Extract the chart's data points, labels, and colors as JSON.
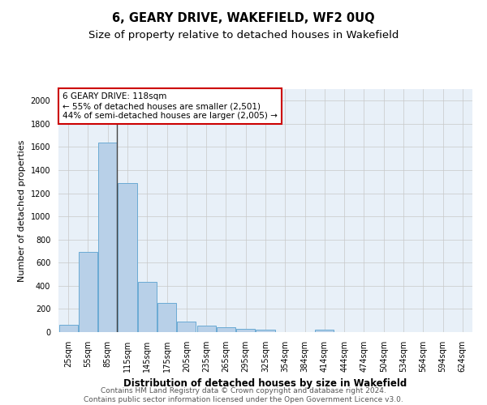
{
  "title": "6, GEARY DRIVE, WAKEFIELD, WF2 0UQ",
  "subtitle": "Size of property relative to detached houses in Wakefield",
  "xlabel": "Distribution of detached houses by size in Wakefield",
  "ylabel": "Number of detached properties",
  "categories": [
    "25sqm",
    "55sqm",
    "85sqm",
    "115sqm",
    "145sqm",
    "175sqm",
    "205sqm",
    "235sqm",
    "265sqm",
    "295sqm",
    "325sqm",
    "354sqm",
    "384sqm",
    "414sqm",
    "444sqm",
    "474sqm",
    "504sqm",
    "534sqm",
    "564sqm",
    "594sqm",
    "624sqm"
  ],
  "values": [
    65,
    690,
    1640,
    1290,
    435,
    255,
    90,
    55,
    40,
    30,
    20,
    0,
    0,
    20,
    0,
    0,
    0,
    0,
    0,
    0,
    0
  ],
  "bar_color": "#b8d0e8",
  "bar_edge_color": "#6aaad4",
  "plot_bg_color": "#e8f0f8",
  "fig_bg_color": "#ffffff",
  "grid_color": "#c8c8c8",
  "annotation_text_line1": "6 GEARY DRIVE: 118sqm",
  "annotation_text_line2": "← 55% of detached houses are smaller (2,501)",
  "annotation_text_line3": "44% of semi-detached houses are larger (2,005) →",
  "annotation_box_facecolor": "#ffffff",
  "annotation_box_edgecolor": "#cc0000",
  "vline_color": "#444444",
  "ylim": [
    0,
    2100
  ],
  "yticks": [
    0,
    200,
    400,
    600,
    800,
    1000,
    1200,
    1400,
    1600,
    1800,
    2000
  ],
  "footer_line1": "Contains HM Land Registry data © Crown copyright and database right 2024.",
  "footer_line2": "Contains public sector information licensed under the Open Government Licence v3.0.",
  "title_fontsize": 10.5,
  "subtitle_fontsize": 9.5,
  "xlabel_fontsize": 8.5,
  "ylabel_fontsize": 8,
  "tick_fontsize": 7,
  "annotation_fontsize": 7.5,
  "footer_fontsize": 6.5
}
